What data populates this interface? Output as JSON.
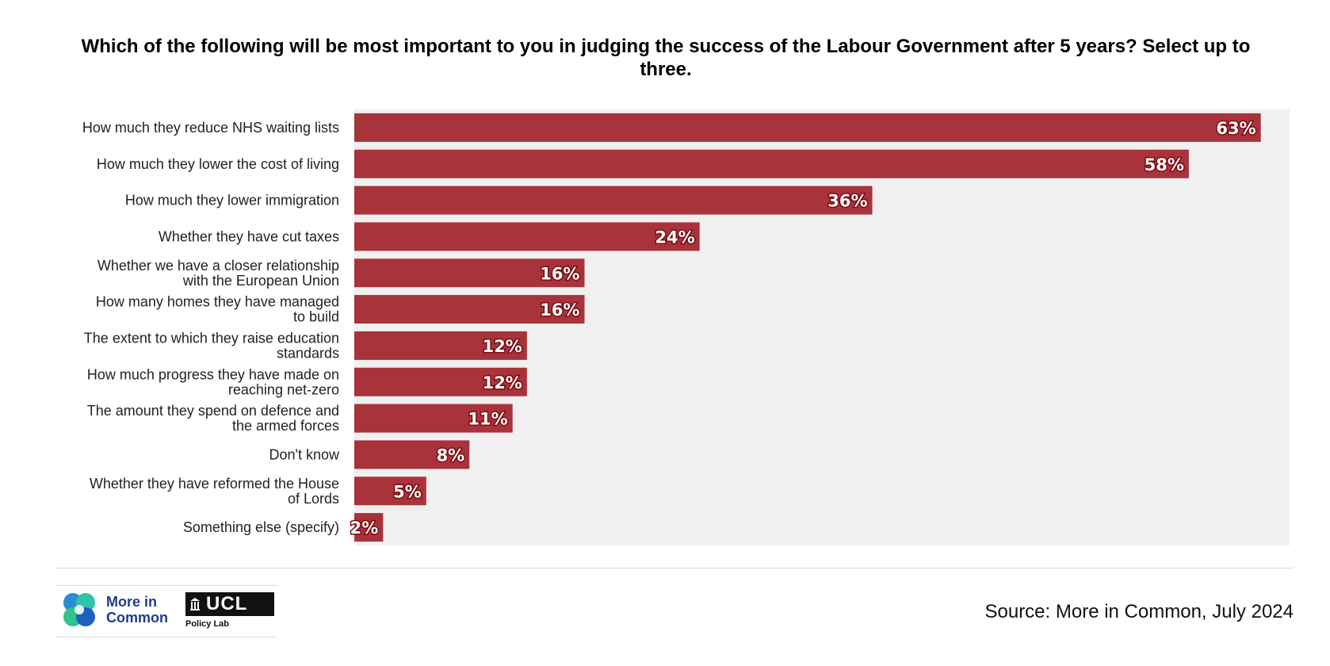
{
  "chart_data": {
    "type": "bar",
    "orientation": "horizontal",
    "title": "Which of the following will be most important to you in judging the success of the Labour Government after 5 years? Select up to three.",
    "categories": [
      "How much they reduce NHS waiting lists",
      "How much they lower the cost of living",
      "How much they lower immigration",
      "Whether they have cut taxes",
      "Whether we have a closer relationship with the European Union",
      "How many homes they have managed to build",
      "The extent to which they raise education standards",
      "How much progress they have made on reaching net-zero",
      "The amount they spend on defence and the armed forces",
      "Don't know",
      "Whether they have reformed the House of Lords",
      "Something else (specify)"
    ],
    "category_lines": [
      [
        "How much they reduce NHS waiting lists"
      ],
      [
        "How much they lower the cost of living"
      ],
      [
        "How much they lower immigration"
      ],
      [
        "Whether they have cut taxes"
      ],
      [
        "Whether we have a closer relationship",
        "with the European Union"
      ],
      [
        "How many homes they have managed",
        "to build"
      ],
      [
        "The extent to which they raise education",
        "standards"
      ],
      [
        "How much progress they have made on",
        "reaching net-zero"
      ],
      [
        "The amount they spend on defence and",
        "the armed forces"
      ],
      [
        "Don't know"
      ],
      [
        "Whether they have reformed the House",
        "of Lords"
      ],
      [
        "Something else (specify)"
      ]
    ],
    "values": [
      63,
      58,
      36,
      24,
      16,
      16,
      12,
      12,
      11,
      8,
      5,
      2
    ],
    "value_labels": [
      "63%",
      "58%",
      "36%",
      "24%",
      "16%",
      "16%",
      "12%",
      "12%",
      "11%",
      "8%",
      "5%",
      "2%"
    ],
    "xlim": [
      0,
      65
    ],
    "grid": false,
    "bar_color": "#a8333a",
    "background_color": "#f0f0f0"
  },
  "logos": {
    "more_in_common": "More in Common",
    "ucl": "UCL",
    "ucl_sub": "Policy Lab"
  },
  "source": "Source: More in Common, July 2024"
}
